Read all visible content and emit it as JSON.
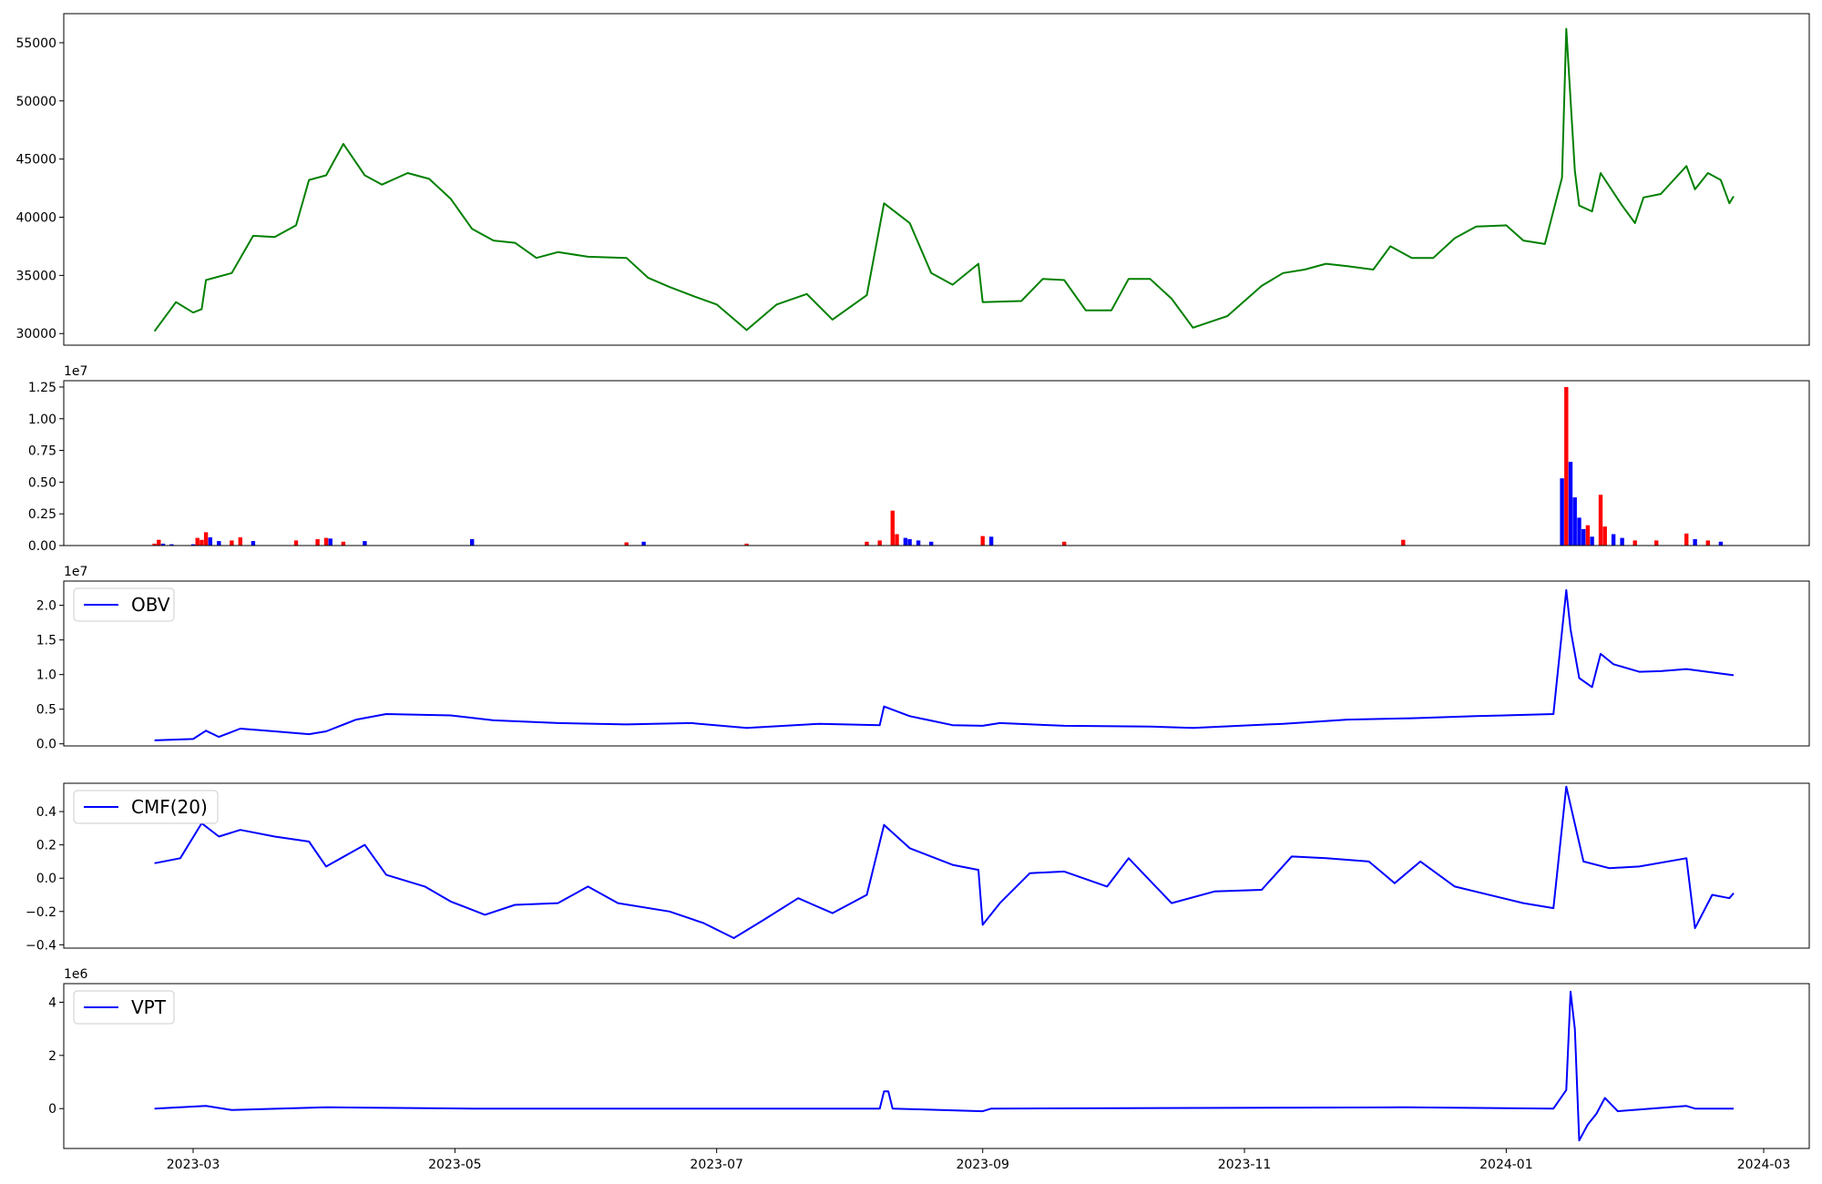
{
  "x_ticks": [
    "2023-03",
    "2023-05",
    "2023-07",
    "2023-09",
    "2023-11",
    "2024-01",
    "2024-03"
  ],
  "chart_data": [
    {
      "type": "line",
      "panel": "price",
      "color": "#008000",
      "ylim": [
        29000,
        57500
      ],
      "yticks": [
        "30000",
        "35000",
        "40000",
        "45000",
        "50000",
        "55000"
      ],
      "x": [
        "2023-02-20",
        "2023-02-25",
        "2023-03-01",
        "2023-03-03",
        "2023-03-04",
        "2023-03-10",
        "2023-03-15",
        "2023-03-20",
        "2023-03-25",
        "2023-03-28",
        "2023-04-01",
        "2023-04-05",
        "2023-04-10",
        "2023-04-14",
        "2023-04-20",
        "2023-04-25",
        "2023-04-30",
        "2023-05-05",
        "2023-05-10",
        "2023-05-15",
        "2023-05-20",
        "2023-05-25",
        "2023-06-01",
        "2023-06-10",
        "2023-06-15",
        "2023-06-20",
        "2023-06-25",
        "2023-07-01",
        "2023-07-08",
        "2023-07-15",
        "2023-07-22",
        "2023-07-28",
        "2023-08-05",
        "2023-08-09",
        "2023-08-15",
        "2023-08-20",
        "2023-08-25",
        "2023-08-31",
        "2023-09-01",
        "2023-09-10",
        "2023-09-15",
        "2023-09-20",
        "2023-09-25",
        "2023-10-01",
        "2023-10-05",
        "2023-10-10",
        "2023-10-15",
        "2023-10-20",
        "2023-10-28",
        "2023-11-05",
        "2023-11-10",
        "2023-11-15",
        "2023-11-20",
        "2023-11-25",
        "2023-12-01",
        "2023-12-05",
        "2023-12-10",
        "2023-12-15",
        "2023-12-20",
        "2023-12-25",
        "2024-01-01",
        "2024-01-05",
        "2024-01-10",
        "2024-01-14",
        "2024-01-15",
        "2024-01-17",
        "2024-01-18",
        "2024-01-21",
        "2024-01-23",
        "2024-01-28",
        "2024-01-31",
        "2024-02-02",
        "2024-02-06",
        "2024-02-12",
        "2024-02-14",
        "2024-02-17",
        "2024-02-20",
        "2024-02-22",
        "2024-02-23"
      ],
      "y": [
        30200,
        32700,
        31800,
        32100,
        34600,
        35200,
        38400,
        38300,
        39300,
        43200,
        43600,
        46300,
        43600,
        42800,
        43800,
        43300,
        41600,
        39000,
        38000,
        37800,
        36500,
        37000,
        36600,
        36500,
        34800,
        34000,
        33300,
        32500,
        30300,
        32500,
        33400,
        31200,
        33300,
        41200,
        39500,
        35200,
        34200,
        36000,
        32700,
        32800,
        34700,
        34600,
        32000,
        32000,
        34700,
        34700,
        33000,
        30500,
        31500,
        34100,
        35200,
        35500,
        36000,
        35800,
        35500,
        37500,
        36500,
        36500,
        38200,
        39200,
        39300,
        38000,
        37700,
        43400,
        56200,
        44000,
        41000,
        40500,
        43800,
        41000,
        39500,
        41700,
        42000,
        44400,
        42400,
        43800,
        43200,
        41200,
        41800
      ]
    },
    {
      "type": "bar",
      "panel": "volume",
      "ylim": [
        0,
        13000000
      ],
      "yticks": [
        "0.00",
        "0.25",
        "0.50",
        "0.75",
        "1.00",
        "1.25"
      ],
      "exponent": "1e7",
      "up_color": "#0000ff",
      "down_color": "#ff0000",
      "values": [
        {
          "x": "2023-02-20",
          "v": 150000,
          "d": "down"
        },
        {
          "x": "2023-02-21",
          "v": 450000,
          "d": "down"
        },
        {
          "x": "2023-02-22",
          "v": 150000,
          "d": "up"
        },
        {
          "x": "2023-02-24",
          "v": 100000,
          "d": "up"
        },
        {
          "x": "2023-03-01",
          "v": 100000,
          "d": "up"
        },
        {
          "x": "2023-03-02",
          "v": 600000,
          "d": "down"
        },
        {
          "x": "2023-03-03",
          "v": 450000,
          "d": "down"
        },
        {
          "x": "2023-03-04",
          "v": 1050000,
          "d": "down"
        },
        {
          "x": "2023-03-05",
          "v": 650000,
          "d": "up"
        },
        {
          "x": "2023-03-07",
          "v": 350000,
          "d": "up"
        },
        {
          "x": "2023-03-10",
          "v": 400000,
          "d": "down"
        },
        {
          "x": "2023-03-12",
          "v": 650000,
          "d": "down"
        },
        {
          "x": "2023-03-15",
          "v": 350000,
          "d": "up"
        },
        {
          "x": "2023-03-25",
          "v": 400000,
          "d": "down"
        },
        {
          "x": "2023-03-30",
          "v": 500000,
          "d": "down"
        },
        {
          "x": "2023-04-01",
          "v": 600000,
          "d": "down"
        },
        {
          "x": "2023-04-02",
          "v": 550000,
          "d": "up"
        },
        {
          "x": "2023-04-05",
          "v": 300000,
          "d": "down"
        },
        {
          "x": "2023-04-10",
          "v": 350000,
          "d": "up"
        },
        {
          "x": "2023-05-05",
          "v": 500000,
          "d": "up"
        },
        {
          "x": "2023-06-10",
          "v": 250000,
          "d": "down"
        },
        {
          "x": "2023-06-14",
          "v": 300000,
          "d": "up"
        },
        {
          "x": "2023-07-08",
          "v": 150000,
          "d": "down"
        },
        {
          "x": "2023-08-05",
          "v": 300000,
          "d": "down"
        },
        {
          "x": "2023-08-08",
          "v": 400000,
          "d": "down"
        },
        {
          "x": "2023-08-11",
          "v": 2750000,
          "d": "down"
        },
        {
          "x": "2023-08-12",
          "v": 900000,
          "d": "down"
        },
        {
          "x": "2023-08-14",
          "v": 600000,
          "d": "up"
        },
        {
          "x": "2023-08-15",
          "v": 500000,
          "d": "up"
        },
        {
          "x": "2023-08-17",
          "v": 400000,
          "d": "up"
        },
        {
          "x": "2023-08-20",
          "v": 300000,
          "d": "up"
        },
        {
          "x": "2023-09-01",
          "v": 750000,
          "d": "down"
        },
        {
          "x": "2023-09-03",
          "v": 700000,
          "d": "up"
        },
        {
          "x": "2023-09-20",
          "v": 300000,
          "d": "down"
        },
        {
          "x": "2023-12-08",
          "v": 450000,
          "d": "down"
        },
        {
          "x": "2024-01-14",
          "v": 5300000,
          "d": "up"
        },
        {
          "x": "2024-01-15",
          "v": 12500000,
          "d": "down"
        },
        {
          "x": "2024-01-16",
          "v": 6600000,
          "d": "up"
        },
        {
          "x": "2024-01-17",
          "v": 3800000,
          "d": "up"
        },
        {
          "x": "2024-01-18",
          "v": 2200000,
          "d": "up"
        },
        {
          "x": "2024-01-19",
          "v": 1300000,
          "d": "up"
        },
        {
          "x": "2024-01-20",
          "v": 1600000,
          "d": "down"
        },
        {
          "x": "2024-01-21",
          "v": 700000,
          "d": "up"
        },
        {
          "x": "2024-01-23",
          "v": 4000000,
          "d": "down"
        },
        {
          "x": "2024-01-24",
          "v": 1500000,
          "d": "down"
        },
        {
          "x": "2024-01-26",
          "v": 900000,
          "d": "up"
        },
        {
          "x": "2024-01-28",
          "v": 600000,
          "d": "up"
        },
        {
          "x": "2024-01-31",
          "v": 400000,
          "d": "down"
        },
        {
          "x": "2024-02-05",
          "v": 400000,
          "d": "down"
        },
        {
          "x": "2024-02-12",
          "v": 950000,
          "d": "down"
        },
        {
          "x": "2024-02-14",
          "v": 500000,
          "d": "up"
        },
        {
          "x": "2024-02-17",
          "v": 400000,
          "d": "down"
        },
        {
          "x": "2024-02-20",
          "v": 300000,
          "d": "up"
        }
      ]
    },
    {
      "type": "line",
      "panel": "obv",
      "color": "#0000ff",
      "legend": "OBV",
      "ylim": [
        -300000,
        23500000
      ],
      "yticks": [
        "0.0",
        "0.5",
        "1.0",
        "1.5",
        "2.0"
      ],
      "exponent": "1e7",
      "x": [
        "2023-02-20",
        "2023-03-01",
        "2023-03-04",
        "2023-03-07",
        "2023-03-12",
        "2023-03-20",
        "2023-03-28",
        "2023-04-01",
        "2023-04-08",
        "2023-04-15",
        "2023-04-30",
        "2023-05-10",
        "2023-05-25",
        "2023-06-10",
        "2023-06-25",
        "2023-07-08",
        "2023-07-25",
        "2023-08-08",
        "2023-08-09",
        "2023-08-15",
        "2023-08-25",
        "2023-09-01",
        "2023-09-05",
        "2023-09-20",
        "2023-10-10",
        "2023-10-20",
        "2023-11-10",
        "2023-11-25",
        "2023-12-10",
        "2023-12-25",
        "2024-01-12",
        "2024-01-15",
        "2024-01-16",
        "2024-01-18",
        "2024-01-21",
        "2024-01-23",
        "2024-01-26",
        "2024-02-01",
        "2024-02-06",
        "2024-02-12",
        "2024-02-23"
      ],
      "y": [
        500000,
        700000,
        1900000,
        1000000,
        2200000,
        1800000,
        1400000,
        1800000,
        3500000,
        4300000,
        4100000,
        3400000,
        3000000,
        2800000,
        3000000,
        2300000,
        2900000,
        2700000,
        5400000,
        4000000,
        2700000,
        2600000,
        3000000,
        2600000,
        2500000,
        2300000,
        2900000,
        3500000,
        3700000,
        4000000,
        4300000,
        22200000,
        16500000,
        9500000,
        8200000,
        13000000,
        11500000,
        10400000,
        10500000,
        10800000,
        9900000
      ]
    },
    {
      "type": "line",
      "panel": "cmf",
      "color": "#0000ff",
      "legend": "CMF(20)",
      "ylim": [
        -0.42,
        0.57
      ],
      "yticks": [
        "−0.4",
        "−0.2",
        "0.0",
        "0.2",
        "0.4"
      ],
      "x": [
        "2023-02-20",
        "2023-02-26",
        "2023-03-03",
        "2023-03-07",
        "2023-03-12",
        "2023-03-20",
        "2023-03-28",
        "2023-04-01",
        "2023-04-10",
        "2023-04-15",
        "2023-04-24",
        "2023-04-30",
        "2023-05-08",
        "2023-05-15",
        "2023-05-25",
        "2023-06-01",
        "2023-06-08",
        "2023-06-20",
        "2023-06-28",
        "2023-07-05",
        "2023-07-12",
        "2023-07-20",
        "2023-07-28",
        "2023-08-05",
        "2023-08-09",
        "2023-08-15",
        "2023-08-25",
        "2023-08-31",
        "2023-09-01",
        "2023-09-05",
        "2023-09-12",
        "2023-09-20",
        "2023-09-30",
        "2023-10-05",
        "2023-10-15",
        "2023-10-25",
        "2023-11-05",
        "2023-11-12",
        "2023-11-20",
        "2023-11-30",
        "2023-12-06",
        "2023-12-12",
        "2023-12-20",
        "2024-01-05",
        "2024-01-12",
        "2024-01-15",
        "2024-01-19",
        "2024-01-25",
        "2024-02-01",
        "2024-02-12",
        "2024-02-14",
        "2024-02-18",
        "2024-02-22",
        "2024-02-23"
      ],
      "y": [
        0.09,
        0.12,
        0.33,
        0.25,
        0.29,
        0.25,
        0.22,
        0.07,
        0.2,
        0.02,
        -0.05,
        -0.14,
        -0.22,
        -0.16,
        -0.15,
        -0.05,
        -0.15,
        -0.2,
        -0.27,
        -0.36,
        -0.25,
        -0.12,
        -0.21,
        -0.1,
        0.32,
        0.18,
        0.08,
        0.05,
        -0.28,
        -0.15,
        0.03,
        0.04,
        -0.05,
        0.12,
        -0.15,
        -0.08,
        -0.07,
        0.13,
        0.12,
        0.1,
        -0.03,
        0.1,
        -0.05,
        -0.15,
        -0.18,
        0.55,
        0.1,
        0.06,
        0.07,
        0.12,
        -0.3,
        -0.1,
        -0.12,
        -0.09
      ]
    },
    {
      "type": "line",
      "panel": "vpt",
      "color": "#0000ff",
      "legend": "VPT",
      "ylim": [
        -1500000,
        4700000
      ],
      "yticks": [
        "0",
        "2",
        "4"
      ],
      "exponent": "1e6",
      "x": [
        "2023-02-20",
        "2023-03-04",
        "2023-03-10",
        "2023-04-01",
        "2023-05-05",
        "2023-08-08",
        "2023-08-09",
        "2023-08-10",
        "2023-08-11",
        "2023-09-01",
        "2023-09-03",
        "2023-12-08",
        "2024-01-12",
        "2024-01-15",
        "2024-01-16",
        "2024-01-17",
        "2024-01-18",
        "2024-01-20",
        "2024-01-22",
        "2024-01-24",
        "2024-01-27",
        "2024-02-12",
        "2024-02-14",
        "2024-02-23"
      ],
      "y": [
        0,
        100000,
        -50000,
        50000,
        0,
        0,
        650000,
        650000,
        0,
        -100000,
        0,
        50000,
        0,
        700000,
        4400000,
        3000000,
        -1200000,
        -600000,
        -200000,
        400000,
        -100000,
        100000,
        0,
        0
      ]
    }
  ]
}
